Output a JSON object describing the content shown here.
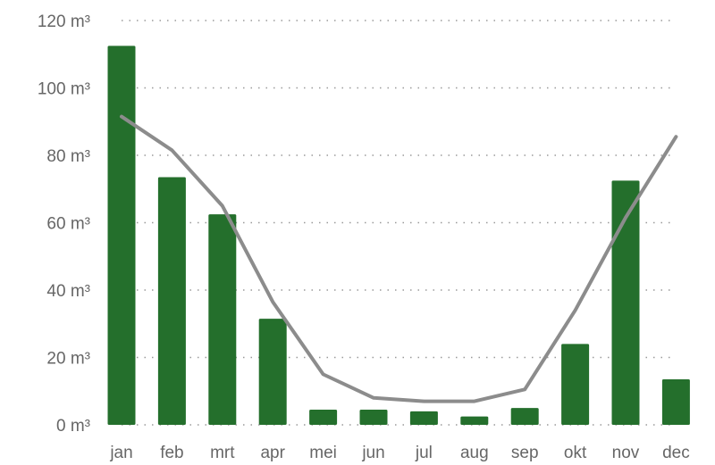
{
  "chart_data": {
    "type": "bar",
    "categories": [
      "jan",
      "feb",
      "mrt",
      "apr",
      "mei",
      "jun",
      "jul",
      "aug",
      "sep",
      "okt",
      "nov",
      "dec"
    ],
    "unit": "m³",
    "ylim": [
      0,
      120
    ],
    "yticks": [
      0,
      20,
      40,
      60,
      80,
      100,
      120
    ],
    "ytick_labels": [
      "0 m³",
      "20 m³",
      "40 m³",
      "60 m³",
      "80 m³",
      "100 m³",
      "120 m³"
    ],
    "grid": true,
    "series": [
      {
        "type": "bar",
        "color": "#246f2c",
        "values": [
          112.5,
          73.5,
          62.5,
          31.5,
          4.5,
          4.5,
          4,
          2.5,
          5,
          24,
          72.5,
          13.5
        ]
      },
      {
        "type": "line",
        "color": "#8c8c8c",
        "values": [
          91.5,
          81.5,
          65,
          36.5,
          15,
          8,
          7,
          7,
          10.5,
          34,
          61.5,
          85.5
        ]
      }
    ]
  }
}
